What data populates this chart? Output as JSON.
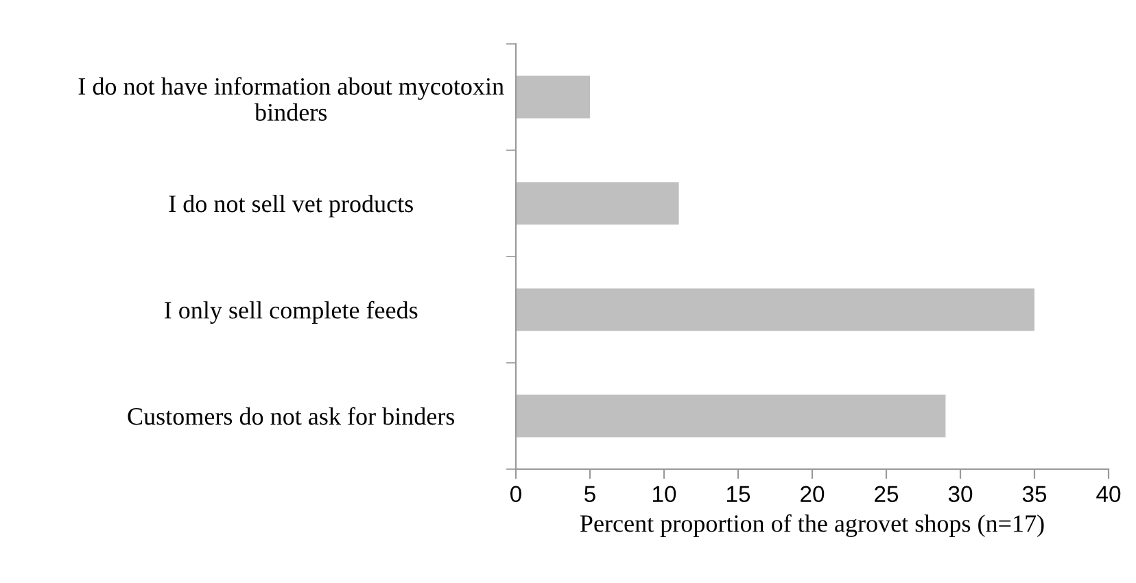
{
  "chart_data": {
    "type": "bar",
    "orientation": "horizontal",
    "categories": [
      "I do not have information about mycotoxin binders",
      "I do not sell vet products",
      "I only sell complete feeds",
      "Customers do not ask for binders"
    ],
    "values": [
      5,
      11,
      35,
      29
    ],
    "color": "#bfbfbf",
    "xlim": [
      0,
      40
    ],
    "xticks": [
      0,
      5,
      10,
      15,
      20,
      25,
      30,
      35,
      40
    ],
    "xlabel": "Percent proportion of the agrovet shops (n=17)",
    "grid": false,
    "legend": false
  }
}
